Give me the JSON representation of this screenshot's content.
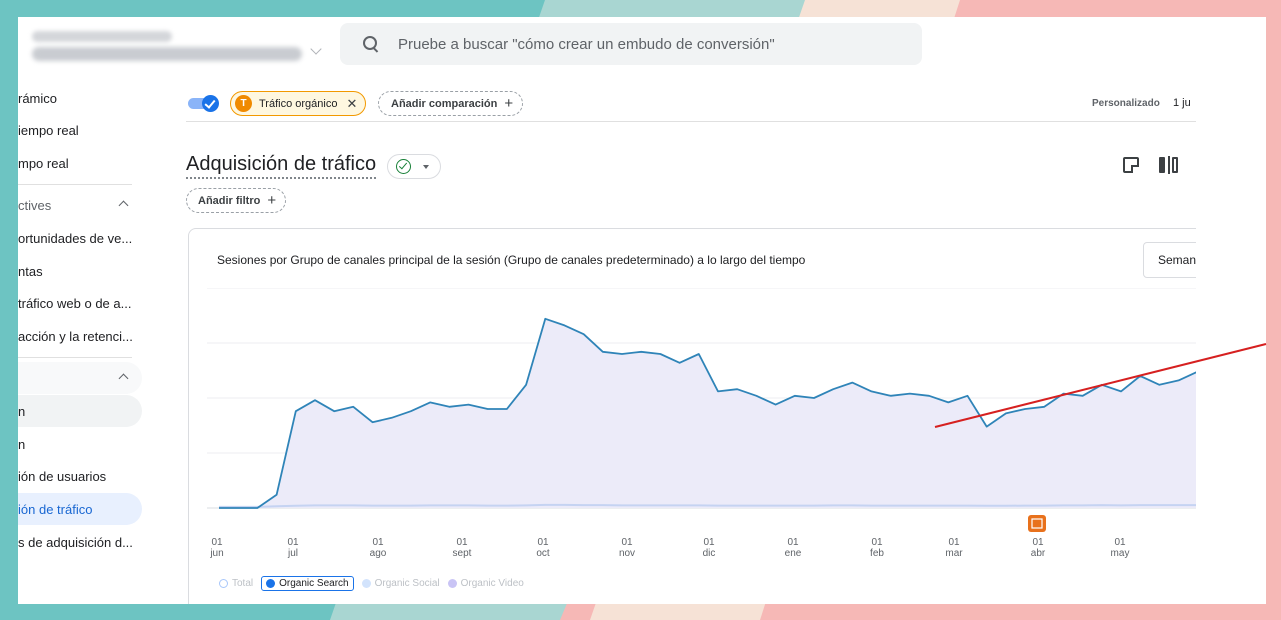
{
  "search": {
    "placeholder": "Pruebe a buscar \"cómo crear un embudo de conversión\""
  },
  "sidebar": {
    "items": [
      {
        "label": "rámico"
      },
      {
        "label": "iempo real"
      },
      {
        "label": "mpo real"
      },
      {
        "label": "ctives"
      },
      {
        "label": "ortunidades de ve..."
      },
      {
        "label": "ntas"
      },
      {
        "label": "tráfico web o de a..."
      },
      {
        "label": "acción y la retenci..."
      },
      {
        "label": ""
      },
      {
        "label": "n"
      },
      {
        "label": "n"
      },
      {
        "label": "ión de usuarios"
      },
      {
        "label": "ión de tráfico"
      },
      {
        "label": "s de adquisición d..."
      }
    ]
  },
  "segment_chip": {
    "badge": "T",
    "label": "Tráfico orgánico",
    "close": "✕"
  },
  "compare_chip": {
    "label": "Añadir comparación",
    "plus": "+"
  },
  "date": {
    "label": "Personalizado",
    "range": "1 ju"
  },
  "page_title": "Adquisición de tráfico",
  "filter": {
    "label": "Añadir filtro",
    "plus": "+"
  },
  "card": {
    "title": "Sesiones por Grupo de canales principal de la sesión (Grupo de canales predeterminado) a lo largo del tiempo",
    "period": "Seman"
  },
  "legend": {
    "total": "Total",
    "organic_search": "Organic Search",
    "organic_social": "Organic Social",
    "organic_video": "Organic Video"
  },
  "colors": {
    "series": "#2f84b8",
    "fill": "#ecebf9",
    "annotation_trend": "#d62020",
    "annotation_marker": "#e8711c",
    "accent": "#1a73e8"
  },
  "chart_data": {
    "type": "line",
    "x_ticks": [
      {
        "day": "01",
        "month": "jun"
      },
      {
        "day": "01",
        "month": "jul"
      },
      {
        "day": "01",
        "month": "ago"
      },
      {
        "day": "01",
        "month": "sept"
      },
      {
        "day": "01",
        "month": "oct"
      },
      {
        "day": "01",
        "month": "nov"
      },
      {
        "day": "01",
        "month": "dic"
      },
      {
        "day": "01",
        "month": "ene"
      },
      {
        "day": "01",
        "month": "feb"
      },
      {
        "day": "01",
        "month": "mar"
      },
      {
        "day": "01",
        "month": "abr"
      },
      {
        "day": "01",
        "month": "may"
      }
    ],
    "series": [
      {
        "name": "Organic Search",
        "values": [
          0,
          0,
          0,
          0.06,
          0.44,
          0.49,
          0.44,
          0.46,
          0.39,
          0.41,
          0.44,
          0.48,
          0.46,
          0.47,
          0.45,
          0.45,
          0.56,
          0.86,
          0.83,
          0.79,
          0.71,
          0.7,
          0.71,
          0.7,
          0.66,
          0.7,
          0.53,
          0.54,
          0.51,
          0.47,
          0.51,
          0.5,
          0.54,
          0.57,
          0.53,
          0.51,
          0.52,
          0.51,
          0.48,
          0.51,
          0.37,
          0.43,
          0.45,
          0.46,
          0.52,
          0.51,
          0.56,
          0.53,
          0.6,
          0.56,
          0.58,
          0.62,
          0.67
        ]
      },
      {
        "name": "Organic Video",
        "values": [
          0.005,
          0.005,
          0.005,
          0.008,
          0.01,
          0.012,
          0.012,
          0.012,
          0.011,
          0.011,
          0.011,
          0.012,
          0.012,
          0.012,
          0.011,
          0.011,
          0.012,
          0.014,
          0.014,
          0.013,
          0.013,
          0.012,
          0.012,
          0.012,
          0.012,
          0.012,
          0.011,
          0.011,
          0.011,
          0.011,
          0.011,
          0.011,
          0.012,
          0.012,
          0.011,
          0.011,
          0.011,
          0.011,
          0.011,
          0.011,
          0.01,
          0.01,
          0.011,
          0.011,
          0.012,
          0.012,
          0.013,
          0.012,
          0.013,
          0.013,
          0.013,
          0.013,
          0.013
        ]
      }
    ],
    "ylim": [
      0,
      1
    ],
    "grid": true,
    "legend_position": "bottom-left"
  }
}
